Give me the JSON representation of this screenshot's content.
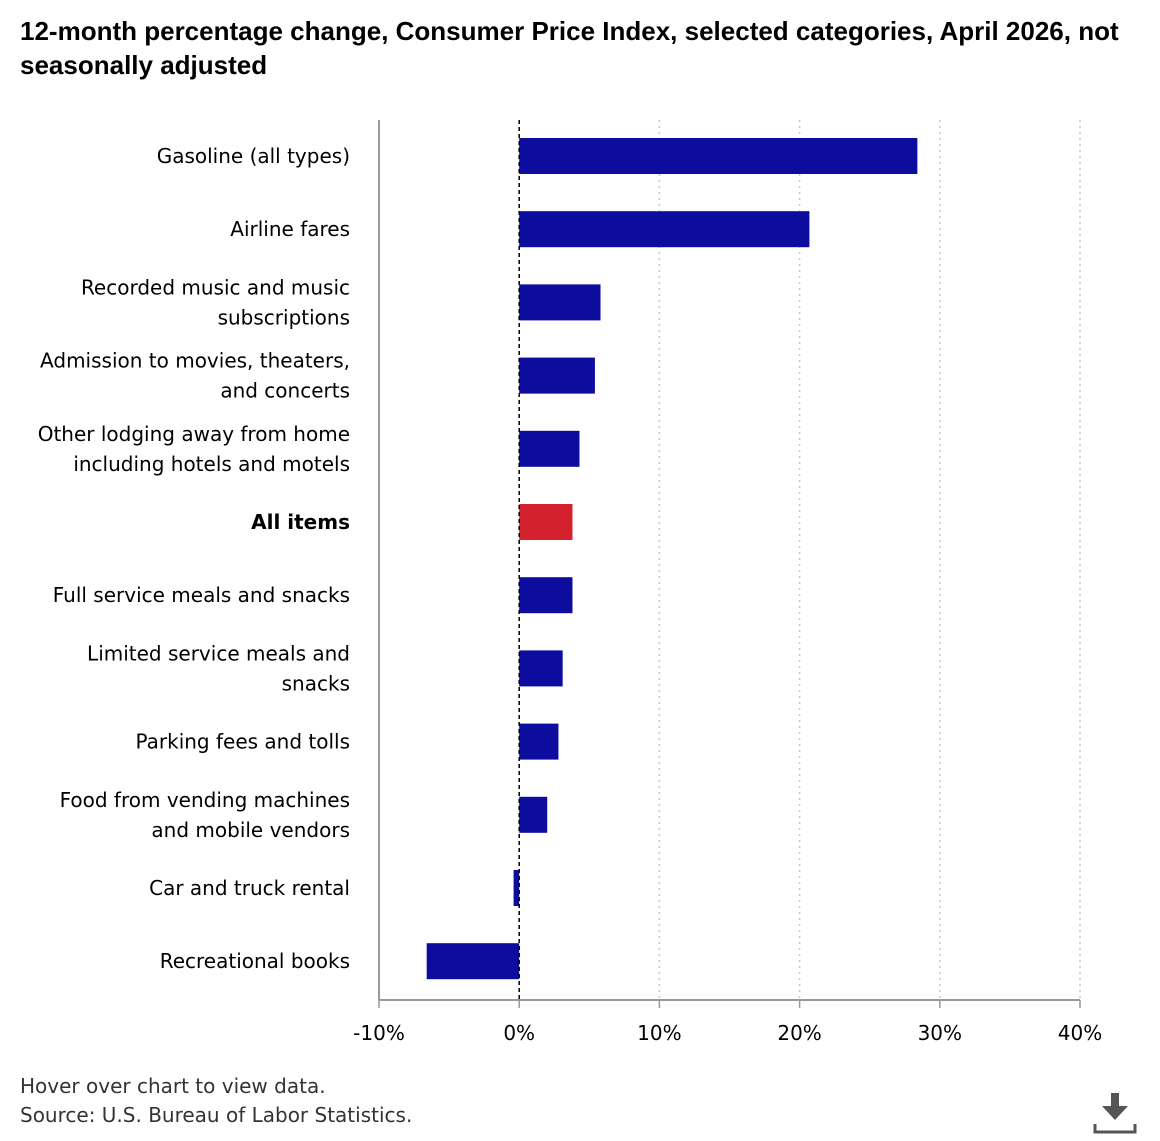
{
  "title": "12-month percentage change, Consumer Price Index, selected categories, April 2026, not seasonally adjusted",
  "footer": {
    "hover_note": "Hover over chart to view data.",
    "source": "Source: U.S. Bureau of Labor Statistics."
  },
  "colors": {
    "bar": "#0c0c9f",
    "highlight": "#d3212d",
    "axis": "#999999",
    "grid": "#c8c8c8",
    "zero_line": "#000000",
    "download_icon": "#555555"
  },
  "download_icon": "download-icon",
  "chart_data": {
    "type": "bar",
    "orientation": "horizontal",
    "categories": [
      [
        "Gasoline (all types)"
      ],
      [
        "Airline fares"
      ],
      [
        "Recorded music and music",
        "subscriptions"
      ],
      [
        "Admission to movies, theaters,",
        "and concerts"
      ],
      [
        "Other lodging away from home",
        "including hotels and motels"
      ],
      [
        "All items"
      ],
      [
        "Full service meals and snacks"
      ],
      [
        "Limited service meals and",
        "snacks"
      ],
      [
        "Parking fees and tolls"
      ],
      [
        "Food from vending machines",
        "and mobile vendors"
      ],
      [
        "Car and truck rental"
      ],
      [
        "Recreational books"
      ]
    ],
    "values": [
      28.4,
      20.7,
      5.8,
      5.4,
      4.3,
      3.8,
      3.8,
      3.1,
      2.8,
      2.0,
      -0.4,
      -6.6
    ],
    "highlight": "All items",
    "xlim": [
      -10,
      40
    ],
    "xticks": [
      -10,
      0,
      10,
      20,
      30,
      40
    ],
    "xtick_labels": [
      "-10%",
      "0%",
      "10%",
      "20%",
      "30%",
      "40%"
    ],
    "grid": "vertical-dotted"
  }
}
